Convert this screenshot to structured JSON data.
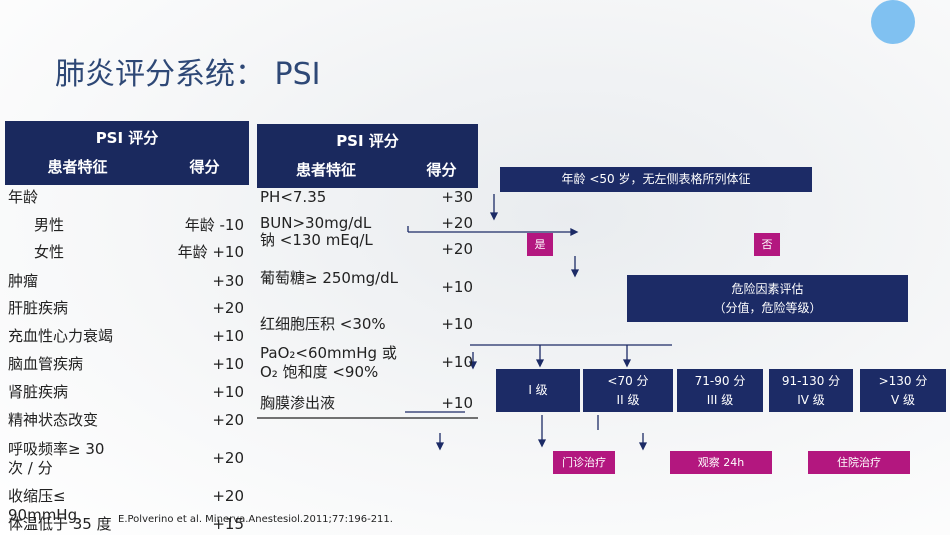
{
  "title": "肺炎评分系统： PSI",
  "table_left": {
    "title": "PSI 评分",
    "columns": [
      "患者特征",
      "得分"
    ],
    "rows": [
      [
        "年龄",
        null
      ],
      [
        "男性",
        "年龄 -10"
      ],
      [
        "女性",
        "年龄 +10"
      ],
      [
        "肿瘤",
        "+30"
      ],
      [
        "肝脏疾病",
        "+20"
      ],
      [
        "充血性心力衰竭",
        "+10"
      ],
      [
        "脑血管疾病",
        "+10"
      ],
      [
        "肾脏疾病",
        "+10"
      ],
      [
        "精神状态改变",
        "+20"
      ],
      [
        "呼吸频率≥ 30 次 / 分",
        "+20"
      ],
      [
        "收缩压≤ 90mmHg",
        "+20"
      ],
      [
        "体温低于 35 度",
        "+15"
      ]
    ]
  },
  "table_right": {
    "title": "PSI 评分",
    "columns": [
      "患者特征",
      "得分"
    ],
    "rows": [
      [
        "PH<7.35",
        "+30"
      ],
      [
        "BUN>30mg/dL",
        "+20"
      ],
      [
        "钠 <130 mEq/L",
        "+20"
      ],
      [
        "葡萄糖≥ 250mg/dL",
        "+10"
      ],
      [
        "红细胞压积 <30%",
        "+10"
      ],
      [
        "PaO₂<60mmHg 或 O₂ 饱和度 <90%",
        "+10"
      ],
      [
        "胸膜渗出液",
        "+10"
      ]
    ]
  },
  "flow": {
    "start": "年龄 <50 岁，无左侧表格所列体征",
    "yes": "是",
    "no": "否",
    "assess": [
      "危险因素评估",
      "（分值，危险等级）"
    ],
    "grades": [
      {
        "range": null,
        "grade": "I 级"
      },
      {
        "range": "<70 分",
        "grade": "II 级"
      },
      {
        "range": "71-90 分",
        "grade": "III 级"
      },
      {
        "range": "91-130 分",
        "grade": "IV 级"
      },
      {
        "range": ">130 分",
        "grade": "V 级"
      }
    ],
    "treatments": [
      "门诊治疗",
      "观察 24h",
      "住院治疗"
    ]
  },
  "citation": "E.Polverino et al. Minerva.Anestesiol.2011;77:196-211."
}
